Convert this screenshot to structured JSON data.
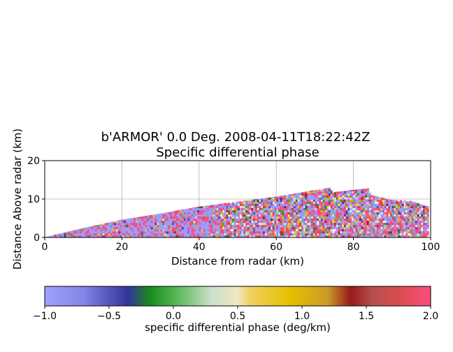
{
  "chart_data": {
    "type": "heatmap",
    "title_line1": "b'ARMOR' 0.0 Deg. 2008-04-11T18:22:42Z",
    "title_line2": "Specific differential phase",
    "xlabel": "Distance from radar (km)",
    "ylabel": "Distance Above radar  (km)",
    "xlim": [
      0,
      100
    ],
    "ylim": [
      0,
      20
    ],
    "xticks": [
      0,
      20,
      40,
      60,
      80,
      100
    ],
    "yticks": [
      0,
      10,
      20
    ],
    "grid": true,
    "colorbar": {
      "label": "specific differential phase (deg/km)",
      "range": [
        -1.0,
        2.0
      ],
      "ticks": [
        -1.0,
        -0.5,
        0.0,
        0.5,
        1.0,
        1.5,
        2.0
      ],
      "tick_labels": [
        "−1.0",
        "−0.5",
        "0.0",
        "0.5",
        "1.0",
        "1.5",
        "2.0"
      ],
      "stops": [
        {
          "v": -1.0,
          "c": "#a0a0ff"
        },
        {
          "v": -0.7,
          "c": "#8585e6"
        },
        {
          "v": -0.35,
          "c": "#333399"
        },
        {
          "v": -0.18,
          "c": "#1a8c1a"
        },
        {
          "v": 0.0,
          "c": "#4db34d"
        },
        {
          "v": 0.3,
          "c": "#cce0cc"
        },
        {
          "v": 0.5,
          "c": "#f0e6c0"
        },
        {
          "v": 0.6,
          "c": "#f0d060"
        },
        {
          "v": 0.9,
          "c": "#e6c000"
        },
        {
          "v": 1.2,
          "c": "#cc9a2a"
        },
        {
          "v": 1.38,
          "c": "#991a1a"
        },
        {
          "v": 1.55,
          "c": "#b35050"
        },
        {
          "v": 1.75,
          "c": "#d94d4d"
        },
        {
          "v": 2.0,
          "c": "#ff4d80"
        }
      ]
    },
    "data_extent": {
      "max_range_km": 100,
      "top_height_profile_km": [
        [
          0,
          0
        ],
        [
          10,
          2.4
        ],
        [
          20,
          4.6
        ],
        [
          30,
          6.2
        ],
        [
          40,
          8.0
        ],
        [
          50,
          9.3
        ],
        [
          60,
          10.6
        ],
        [
          70,
          12.3
        ],
        [
          74,
          13.0
        ],
        [
          75,
          11.8
        ],
        [
          84,
          12.8
        ],
        [
          85,
          11.0
        ],
        [
          90,
          9.8
        ],
        [
          95,
          9.6
        ],
        [
          99,
          8.2
        ]
      ]
    }
  }
}
